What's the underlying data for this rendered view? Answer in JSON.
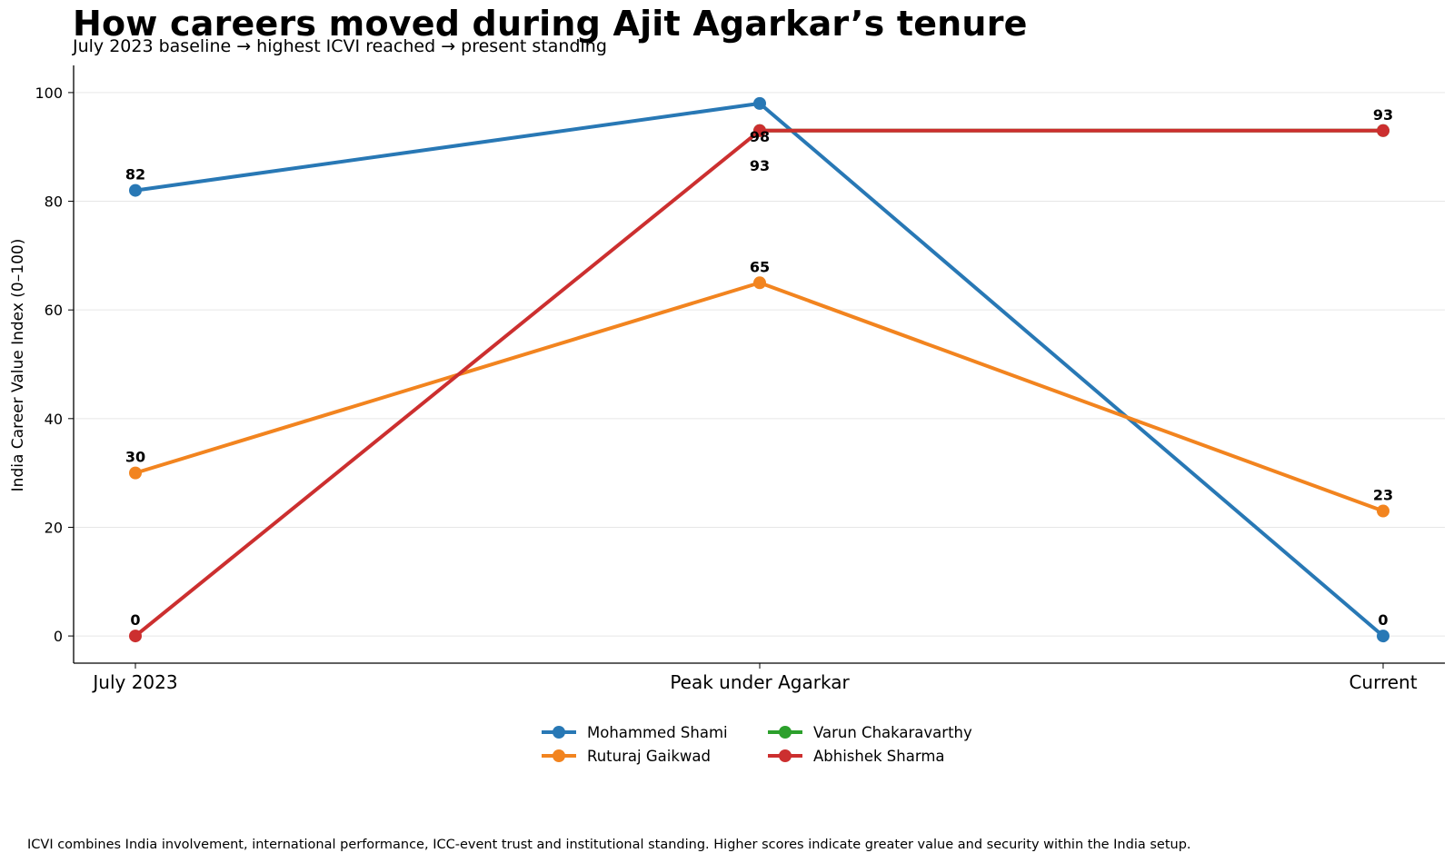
{
  "chart_data": {
    "type": "line",
    "title": "How careers moved during Ajit Agarkar’s tenure",
    "subtitle": "July 2023 baseline → highest ICVI reached → present standing",
    "categories": [
      "July 2023",
      "Peak under Agarkar",
      "Current"
    ],
    "ylabel": "India Career Value Index (0–100)",
    "ylim": [
      -5,
      105
    ],
    "yticks": [
      0,
      20,
      40,
      60,
      80,
      100
    ],
    "grid": "horizontal",
    "legend_position": "bottom-center",
    "series": [
      {
        "name": "Mohammed Shami",
        "color": "#2878b5",
        "values": [
          82,
          98,
          0
        ]
      },
      {
        "name": "Ruturaj Gaikwad",
        "color": "#f2841f",
        "values": [
          30,
          65,
          23
        ]
      },
      {
        "name": "Varun Chakaravarthy",
        "color": "#2ca02c",
        "values": [
          null,
          93,
          93
        ]
      },
      {
        "name": "Abhishek Sharma",
        "color": "#cc2f2f",
        "values": [
          0,
          93,
          93
        ]
      }
    ],
    "footnote": "ICVI combines India involvement, international performance, ICC-event trust and institutional standing. Higher scores indicate greater value and security within the India setup."
  }
}
